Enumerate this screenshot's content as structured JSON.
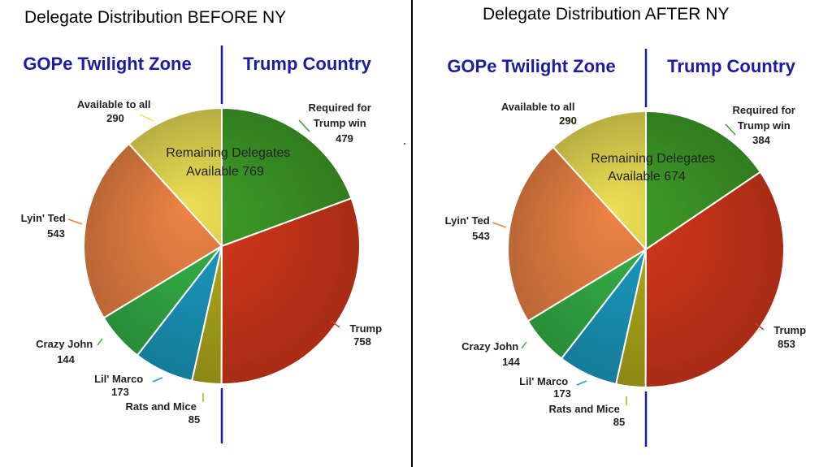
{
  "chart_data": [
    {
      "type": "pie",
      "title": "Delegate Distribution BEFORE NY",
      "zone_left": "GOPe Twilight Zone",
      "zone_right": "Trump Country",
      "center_text": [
        "Remaining Delegates",
        "Available  769"
      ],
      "slices": [
        {
          "name": "Required for Trump win",
          "value": 479,
          "color": "#3f9f28",
          "label_lines": [
            "Required for",
            "Trump win",
            "479"
          ]
        },
        {
          "name": "Trump",
          "value": 758,
          "color": "#d8391c",
          "label_lines": [
            "Trump",
            "758"
          ]
        },
        {
          "name": "Rats and Mice",
          "value": 85,
          "color": "#b5ae1c",
          "label_lines": [
            "Rats and Mice",
            "85"
          ]
        },
        {
          "name": "Lil' Marco",
          "value": 173,
          "color": "#1b9ec4",
          "label_lines": [
            "Lil' Marco",
            "173"
          ]
        },
        {
          "name": "Crazy John",
          "value": 144,
          "color": "#35b448",
          "label_lines": [
            "Crazy John",
            "144"
          ]
        },
        {
          "name": "Lyin' Ted",
          "value": 543,
          "color": "#ee8445",
          "label_lines": [
            "Lyin' Ted",
            "543"
          ]
        },
        {
          "name": "Available to all",
          "value": 290,
          "color": "#ecdf54",
          "label_lines": [
            "Available to all",
            "290"
          ]
        }
      ]
    },
    {
      "type": "pie",
      "title": "Delegate Distribution AFTER NY",
      "zone_left": "GOPe Twilight Zone",
      "zone_right": "Trump Country",
      "center_text": [
        "Remaining Delegates",
        "Available  674"
      ],
      "slices": [
        {
          "name": "Required for Trump win",
          "value": 384,
          "color": "#3f9f28",
          "label_lines": [
            "Required for",
            "Trump win",
            "384"
          ]
        },
        {
          "name": "Trump",
          "value": 853,
          "color": "#d8391c",
          "label_lines": [
            "Trump",
            "853"
          ]
        },
        {
          "name": "Rats and Mice",
          "value": 85,
          "color": "#b5ae1c",
          "label_lines": [
            "Rats and Mice",
            "85"
          ]
        },
        {
          "name": "Lil' Marco",
          "value": 173,
          "color": "#1b9ec4",
          "label_lines": [
            "Lil' Marco",
            "173"
          ]
        },
        {
          "name": "Crazy John",
          "value": 144,
          "color": "#35b448",
          "label_lines": [
            "Crazy John",
            "144"
          ]
        },
        {
          "name": "Lyin' Ted",
          "value": 543,
          "color": "#ee8445",
          "label_lines": [
            "Lyin' Ted",
            "543"
          ]
        },
        {
          "name": "Available to all",
          "value": 290,
          "color": "#ecdf54",
          "label_lines": [
            "Available to all",
            "290"
          ]
        }
      ]
    }
  ]
}
